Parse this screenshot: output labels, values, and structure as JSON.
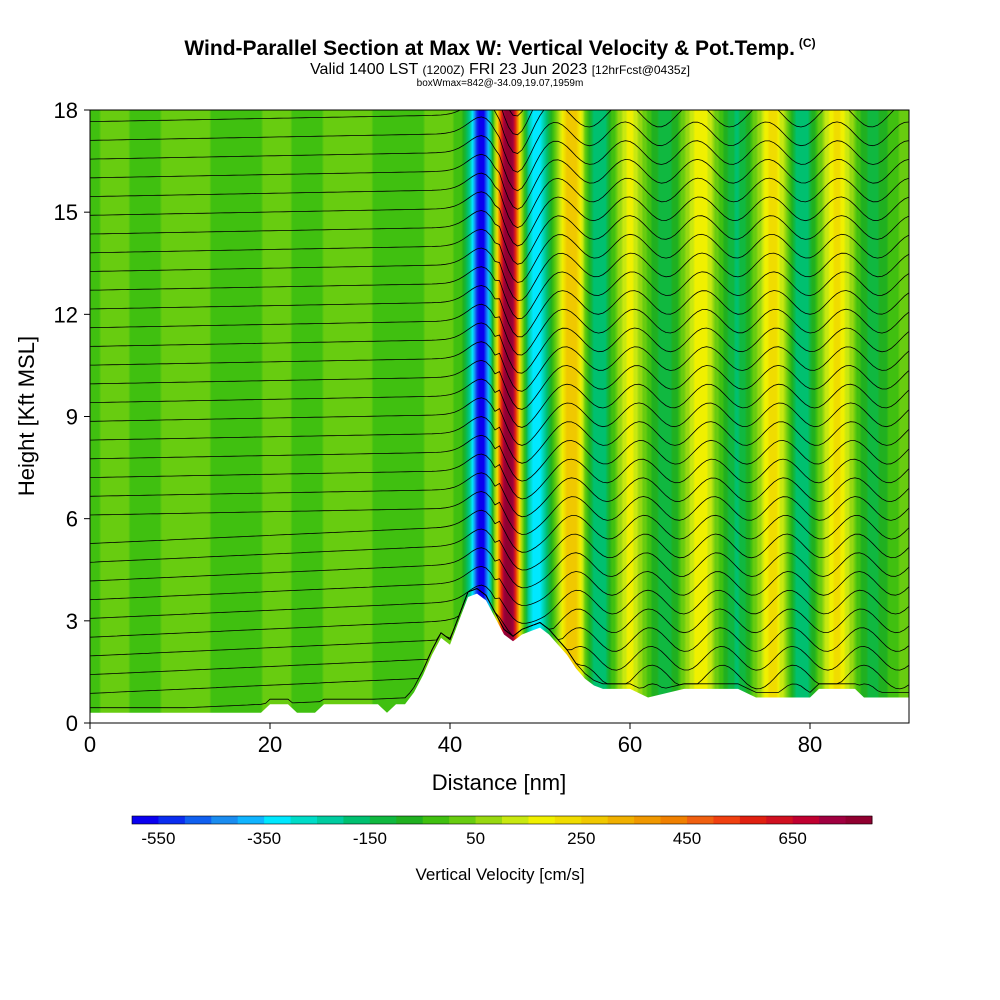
{
  "header": {
    "title": "Wind-Parallel Section at Max W: Vertical Velocity & Pot.Temp.",
    "copyright": "(C)",
    "valid_prefix": "Valid 1400 LST",
    "utc": "(1200Z)",
    "date": "FRI 23 Jun 2023",
    "fcst": "[12hrFcst@0435z]",
    "box_info": "boxWmax=842@-34.09,19.07,1959m"
  },
  "chart_data": {
    "type": "heatmap",
    "title": "Wind-Parallel Section at Max W: Vertical Velocity & Pot.Temp.",
    "xlabel": "Distance [nm]",
    "ylabel": "Height [Kft MSL]",
    "xlim": [
      0,
      91
    ],
    "ylim": [
      0,
      18
    ],
    "x_ticks": [
      0,
      20,
      40,
      60,
      80
    ],
    "y_ticks": [
      0,
      3,
      6,
      9,
      12,
      15,
      18
    ],
    "colorbar": {
      "label": "Vertical Velocity [cm/s]",
      "tick_labels": [
        "-550",
        "-350",
        "-150",
        "50",
        "250",
        "450",
        "650"
      ],
      "tick_values": [
        -550,
        -350,
        -150,
        50,
        250,
        450,
        650
      ],
      "min": -600,
      "max": 800,
      "step": 50,
      "colors": [
        "#0a00f0",
        "#0a2df0",
        "#1060f0",
        "#1a8cf0",
        "#10b4ff",
        "#00e8ff",
        "#00dcc8",
        "#00cca0",
        "#00c070",
        "#10b840",
        "#20b020",
        "#40c010",
        "#68cc10",
        "#98d810",
        "#c8e810",
        "#f0f000",
        "#f0dc00",
        "#f0c800",
        "#f0b000",
        "#f09800",
        "#f08000",
        "#f06010",
        "#f04010",
        "#e02010",
        "#d01020",
        "#c00030",
        "#a00040",
        "#900030"
      ]
    },
    "terrain_kft": [
      [
        0,
        0.3
      ],
      [
        10,
        0.3
      ],
      [
        16,
        0.3
      ],
      [
        19,
        0.3
      ],
      [
        20,
        0.55
      ],
      [
        22,
        0.55
      ],
      [
        23,
        0.3
      ],
      [
        25,
        0.3
      ],
      [
        26,
        0.55
      ],
      [
        32,
        0.55
      ],
      [
        33,
        0.3
      ],
      [
        34,
        0.55
      ],
      [
        35,
        0.55
      ],
      [
        36,
        0.9
      ],
      [
        37,
        1.4
      ],
      [
        38,
        2.0
      ],
      [
        39,
        2.5
      ],
      [
        40,
        2.3
      ],
      [
        41,
        3.0
      ],
      [
        42,
        3.7
      ],
      [
        43,
        3.8
      ],
      [
        44,
        3.6
      ],
      [
        45,
        3.1
      ],
      [
        46,
        2.6
      ],
      [
        47,
        2.4
      ],
      [
        48,
        2.6
      ],
      [
        49,
        2.7
      ],
      [
        50,
        2.8
      ],
      [
        51,
        2.6
      ],
      [
        52,
        2.3
      ],
      [
        53,
        2.0
      ],
      [
        54,
        1.6
      ],
      [
        55,
        1.3
      ],
      [
        56,
        1.1
      ],
      [
        57,
        1.0
      ],
      [
        58,
        1.0
      ],
      [
        60,
        1.0
      ],
      [
        62,
        0.75
      ],
      [
        66,
        1.0
      ],
      [
        70,
        1.0
      ],
      [
        72,
        1.0
      ],
      [
        74,
        0.75
      ],
      [
        80,
        0.75
      ],
      [
        81,
        1.0
      ],
      [
        85,
        1.0
      ],
      [
        86,
        0.75
      ],
      [
        89,
        0.75
      ],
      [
        91,
        0.75
      ]
    ],
    "w_features": [
      {
        "x": 43.5,
        "w": -580,
        "type": "downdraft"
      },
      {
        "x": 46.5,
        "w": 842,
        "type": "updraft"
      },
      {
        "x": 49.5,
        "w": -350,
        "type": "downdraft"
      },
      {
        "x": 53.5,
        "w": 300,
        "type": "updraft"
      },
      {
        "x": 56.5,
        "w": -220,
        "type": "downdraft"
      },
      {
        "x": 60.0,
        "w": 180,
        "type": "updraft"
      },
      {
        "x": 64.0,
        "w": -150,
        "type": "downdraft"
      },
      {
        "x": 68.0,
        "w": 200,
        "type": "updraft"
      },
      {
        "x": 72.0,
        "w": -160,
        "type": "downdraft"
      },
      {
        "x": 76.0,
        "w": 220,
        "type": "updraft"
      },
      {
        "x": 79.0,
        "w": -180,
        "type": "downdraft"
      },
      {
        "x": 83.0,
        "w": 200,
        "type": "updraft"
      },
      {
        "x": 87.0,
        "w": -100,
        "type": "downdraft"
      }
    ]
  }
}
